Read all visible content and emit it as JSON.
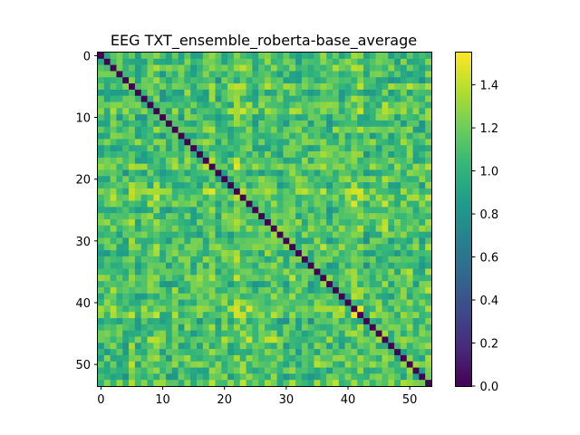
{
  "chart_data": {
    "type": "heatmap",
    "title": "EEG TXT_ensemble_roberta-base_average",
    "xlabel": "",
    "ylabel": "",
    "n": 54,
    "xlim": [
      -0.5,
      53.5
    ],
    "ylim": [
      53.5,
      -0.5
    ],
    "x_ticks": [
      0,
      10,
      20,
      30,
      40,
      50
    ],
    "y_ticks": [
      0,
      10,
      20,
      30,
      40,
      50
    ],
    "colormap": "viridis",
    "vmin": 0.0,
    "vmax": 1.55,
    "colorbar_ticks": [
      "0.0",
      "0.2",
      "0.4",
      "0.6",
      "0.8",
      "1.0",
      "1.2",
      "1.4"
    ],
    "colorbar_tick_values": [
      0.0,
      0.2,
      0.4,
      0.6,
      0.8,
      1.0,
      1.2,
      1.4
    ],
    "diagonal_value": 0.0,
    "row_strength": [
      0.95,
      1.0,
      1.1,
      0.95,
      0.9,
      1.15,
      0.95,
      1.0,
      1.1,
      1.2,
      0.95,
      0.9,
      1.05,
      1.0,
      1.15,
      0.95,
      1.0,
      1.05,
      1.2,
      0.95,
      1.1,
      1.0,
      1.25,
      1.2,
      1.15,
      0.95,
      1.0,
      1.1,
      1.2,
      1.0,
      1.0,
      1.15,
      1.0,
      1.05,
      0.95,
      1.1,
      1.15,
      1.0,
      1.1,
      1.0,
      1.05,
      1.25,
      1.2,
      0.9,
      1.0,
      1.05,
      1.15,
      1.0,
      0.95,
      1.05,
      1.1,
      1.0,
      0.95,
      1.15
    ],
    "colors": {
      "viridis": [
        "#440154",
        "#482878",
        "#3e4989",
        "#31688e",
        "#26828e",
        "#1f9e89",
        "#35b779",
        "#6ece58",
        "#b5de2b",
        "#fde725"
      ]
    }
  }
}
